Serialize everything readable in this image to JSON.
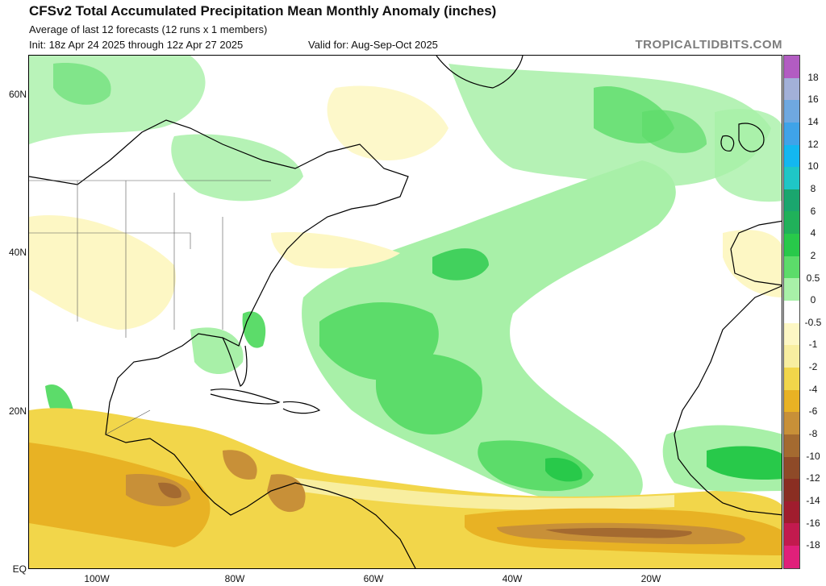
{
  "header": {
    "title": "CFSv2 Total Accumulated Precipitation Mean Monthly Anomaly (inches)",
    "subtitle": "Average of last 12 forecasts (12 runs x 1 members)",
    "init": "Init: 18z Apr 24 2025 through 12z Apr 27 2025",
    "valid": "Valid for: Aug-Sep-Oct 2025",
    "brand": "TROPICALTIDBITS.COM"
  },
  "axes": {
    "lat_labels": [
      "60N",
      "40N",
      "20N",
      "EQ"
    ],
    "lon_labels": [
      "100W",
      "80W",
      "60W",
      "40W",
      "20W"
    ]
  },
  "colorbar": {
    "labels": [
      "18",
      "16",
      "14",
      "12",
      "10",
      "8",
      "6",
      "4",
      "2",
      "0.5",
      "0",
      "-0.5",
      "-1",
      "-2",
      "-4",
      "-6",
      "-8",
      "-10",
      "-12",
      "-14",
      "-16",
      "-18"
    ],
    "colors": [
      "#b25cc2",
      "#a2b0d8",
      "#6fa8e0",
      "#3fa3e8",
      "#13b7f0",
      "#1fc6c6",
      "#1aa66e",
      "#20b15a",
      "#28c94a",
      "#5cdc6a",
      "#a8f0a8",
      "#ffffff",
      "#fdf7c4",
      "#f8eea0",
      "#f2d64a",
      "#e8b224",
      "#c89038",
      "#a46a30",
      "#8e4a28",
      "#8a2e22",
      "#a01d2e",
      "#c21a4e",
      "#e0207a"
    ]
  },
  "icons": {
    "land_outline": "coastline-icon",
    "land_fill": "#ffffff"
  }
}
